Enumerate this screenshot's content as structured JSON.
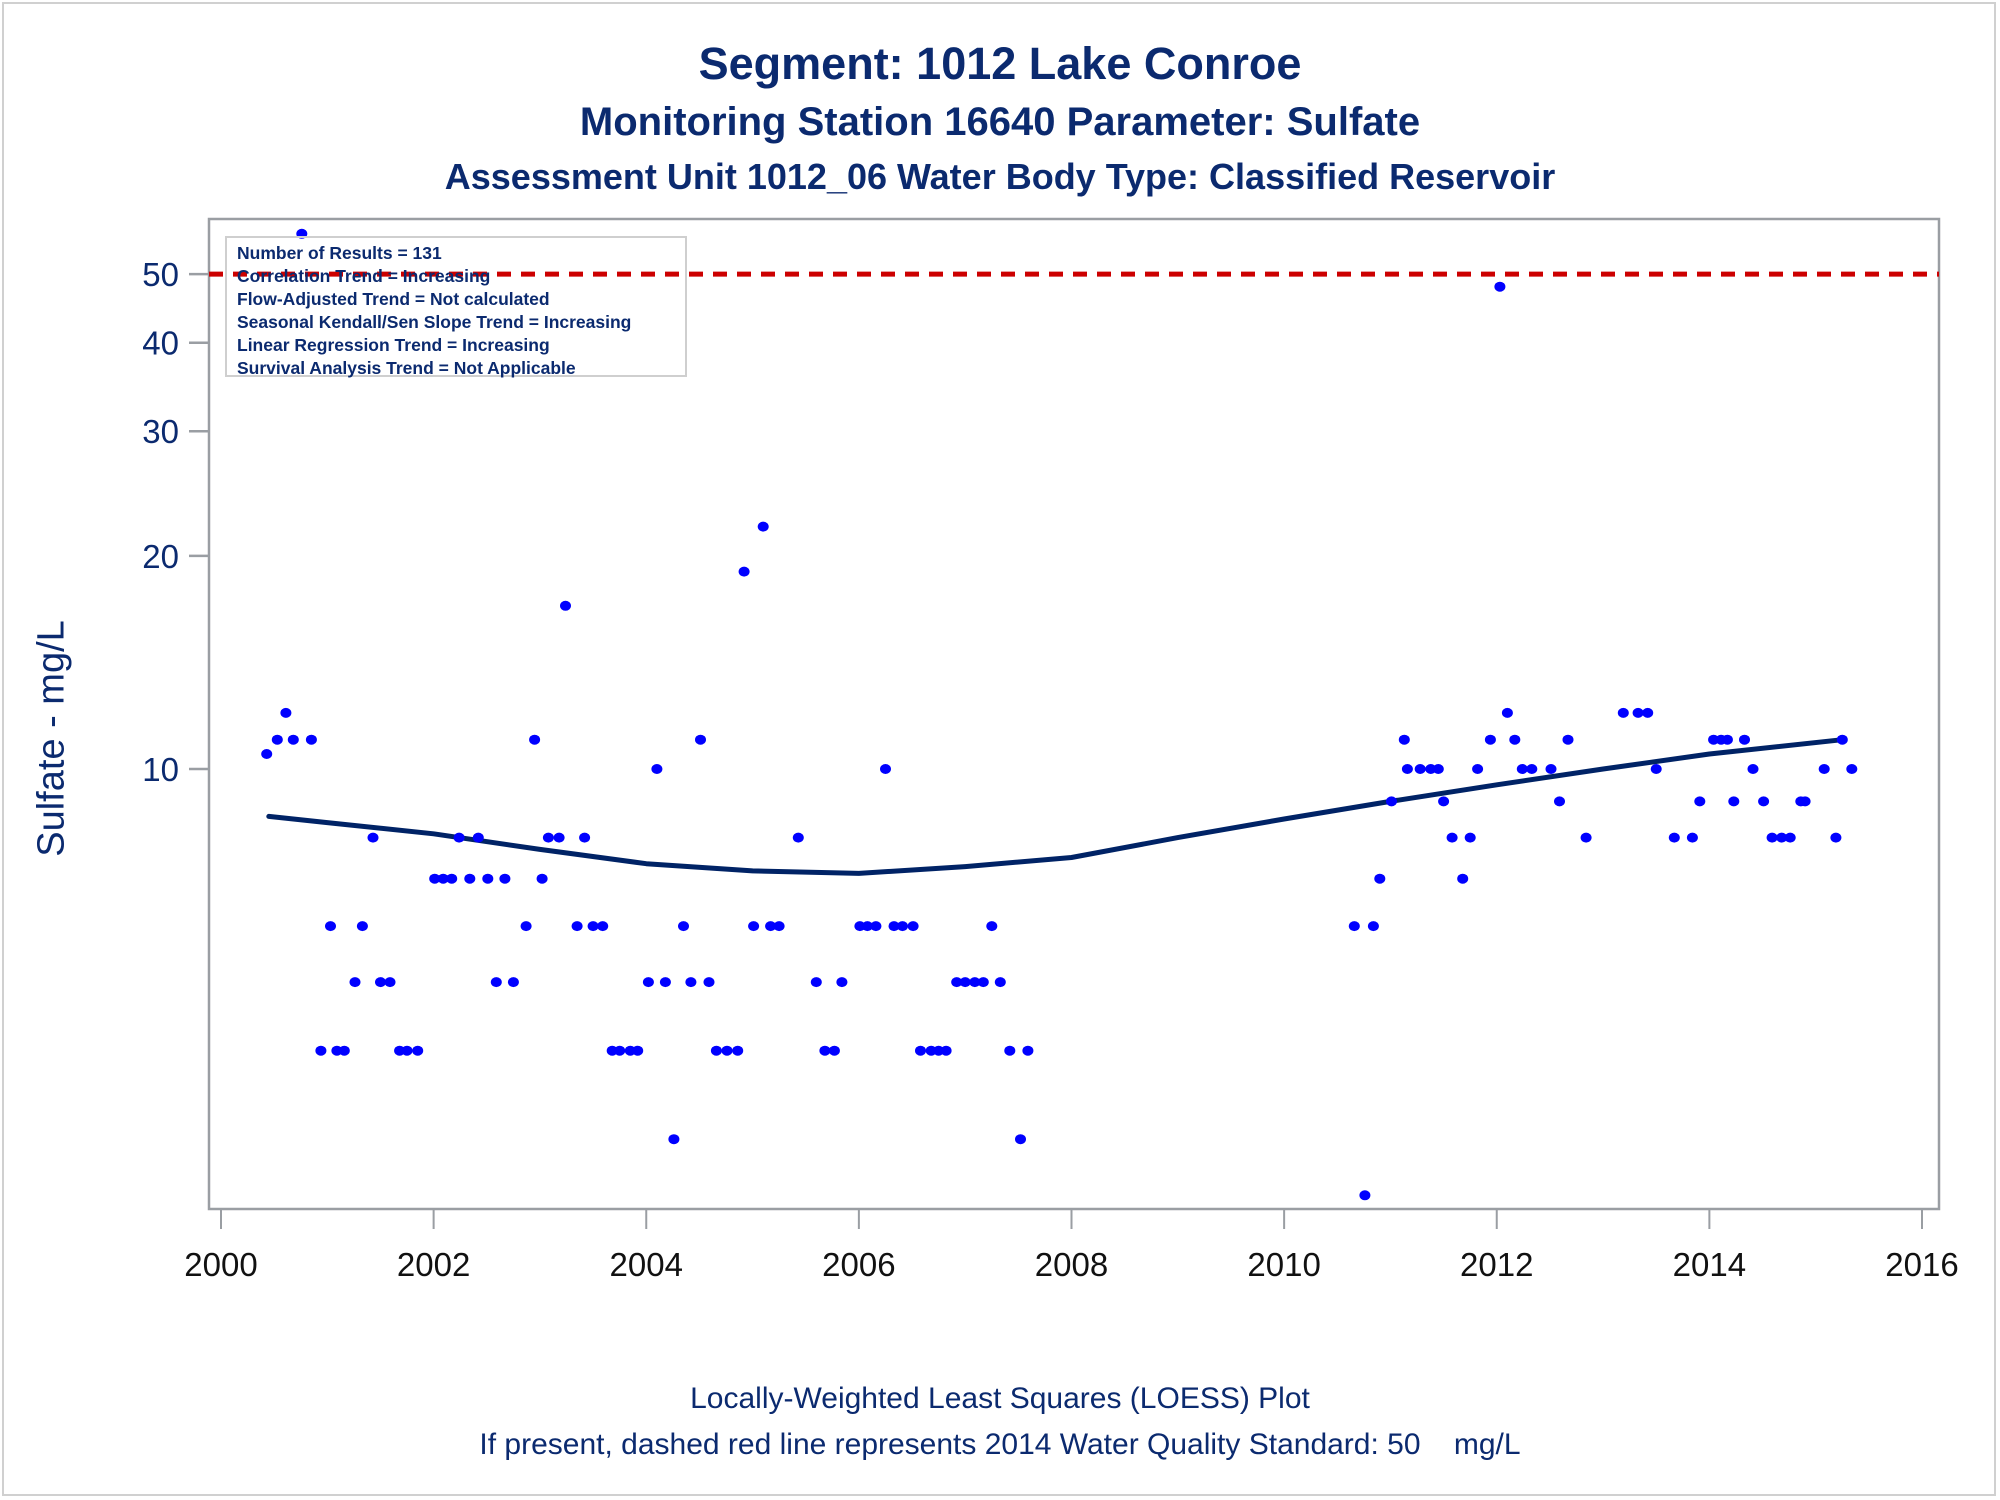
{
  "chart_data": {
    "type": "scatter",
    "title": "Segment: 1012  Lake Conroe",
    "subtitle": "Monitoring Station 16640 Parameter: Sulfate",
    "subtitle2": "Assessment Unit 1012_06   Water Body Type: Classified Reservoir",
    "xlabel": "",
    "ylabel": "Sulfate - mg/L",
    "xlim": [
      2000,
      2016
    ],
    "ylim": [
      2.5,
      60
    ],
    "yscale": "log",
    "xticks": [
      2000,
      2002,
      2004,
      2006,
      2008,
      2010,
      2012,
      2014,
      2016
    ],
    "xtick_labels": [
      "2000",
      "2002",
      "2004",
      "2006",
      "2008",
      "2010",
      "2012",
      "2014",
      "2016"
    ],
    "yticks": [
      10,
      20,
      30,
      40,
      50
    ],
    "ytick_labels": [
      "10",
      "20",
      "30",
      "40",
      "50"
    ],
    "grid": false,
    "colors": {
      "points": "#0000ff",
      "loess": "#002366",
      "standard": "#cc0000",
      "text": "#0b2a6f",
      "axis": "#9a9ea3"
    },
    "standard_line": {
      "value": 50,
      "style": "dashed",
      "label": "2014 Water Quality Standard"
    },
    "series": [
      {
        "name": "Sulfate results",
        "kind": "scatter",
        "points": [
          [
            2000.43,
            10.5
          ],
          [
            2000.53,
            11
          ],
          [
            2000.61,
            12
          ],
          [
            2000.68,
            11
          ],
          [
            2000.76,
            57
          ],
          [
            2000.85,
            11
          ],
          [
            2000.94,
            4
          ],
          [
            2001.03,
            6
          ],
          [
            2001.09,
            4
          ],
          [
            2001.16,
            4
          ],
          [
            2001.26,
            5
          ],
          [
            2001.33,
            6
          ],
          [
            2001.43,
            8
          ],
          [
            2001.5,
            5
          ],
          [
            2001.59,
            5
          ],
          [
            2001.68,
            4
          ],
          [
            2001.75,
            4
          ],
          [
            2001.85,
            4
          ],
          [
            2002.01,
            7
          ],
          [
            2002.09,
            7
          ],
          [
            2002.17,
            7
          ],
          [
            2002.24,
            8
          ],
          [
            2002.34,
            7
          ],
          [
            2002.42,
            8
          ],
          [
            2002.51,
            7
          ],
          [
            2002.59,
            5
          ],
          [
            2002.67,
            7
          ],
          [
            2002.75,
            5
          ],
          [
            2002.87,
            6
          ],
          [
            2002.95,
            11
          ],
          [
            2003.02,
            7
          ],
          [
            2003.08,
            8
          ],
          [
            2003.18,
            8
          ],
          [
            2003.24,
            17
          ],
          [
            2003.35,
            6
          ],
          [
            2003.42,
            8
          ],
          [
            2003.5,
            6
          ],
          [
            2003.59,
            6
          ],
          [
            2003.68,
            4
          ],
          [
            2003.75,
            4
          ],
          [
            2003.85,
            4
          ],
          [
            2003.92,
            4
          ],
          [
            2004.02,
            5
          ],
          [
            2004.1,
            10
          ],
          [
            2004.18,
            5
          ],
          [
            2004.26,
            3
          ],
          [
            2004.35,
            6
          ],
          [
            2004.42,
            5
          ],
          [
            2004.51,
            11
          ],
          [
            2004.59,
            5
          ],
          [
            2004.66,
            4
          ],
          [
            2004.76,
            4
          ],
          [
            2004.86,
            4
          ],
          [
            2004.92,
            19
          ],
          [
            2005.01,
            6
          ],
          [
            2005.1,
            22
          ],
          [
            2005.17,
            6
          ],
          [
            2005.25,
            6
          ],
          [
            2005.43,
            8
          ],
          [
            2005.6,
            5
          ],
          [
            2005.68,
            4
          ],
          [
            2005.77,
            4
          ],
          [
            2005.84,
            5
          ],
          [
            2006.01,
            6
          ],
          [
            2006.08,
            6
          ],
          [
            2006.16,
            6
          ],
          [
            2006.25,
            10
          ],
          [
            2006.33,
            6
          ],
          [
            2006.41,
            6
          ],
          [
            2006.51,
            6
          ],
          [
            2006.58,
            4
          ],
          [
            2006.68,
            4
          ],
          [
            2006.75,
            4
          ],
          [
            2006.82,
            4
          ],
          [
            2006.92,
            5
          ],
          [
            2007.0,
            5
          ],
          [
            2007.09,
            5
          ],
          [
            2007.17,
            5
          ],
          [
            2007.25,
            6
          ],
          [
            2007.33,
            5
          ],
          [
            2007.42,
            4
          ],
          [
            2007.52,
            3
          ],
          [
            2007.59,
            4
          ],
          [
            2010.66,
            6
          ],
          [
            2010.76,
            2.5
          ],
          [
            2010.84,
            6
          ],
          [
            2010.9,
            7
          ],
          [
            2011.01,
            9
          ],
          [
            2011.13,
            11
          ],
          [
            2011.16,
            10
          ],
          [
            2011.28,
            10
          ],
          [
            2011.38,
            10
          ],
          [
            2011.45,
            10
          ],
          [
            2011.5,
            9
          ],
          [
            2011.58,
            8
          ],
          [
            2011.68,
            7
          ],
          [
            2011.75,
            8
          ],
          [
            2011.82,
            10
          ],
          [
            2011.94,
            11
          ],
          [
            2012.03,
            48
          ],
          [
            2012.1,
            12
          ],
          [
            2012.17,
            11
          ],
          [
            2012.24,
            10
          ],
          [
            2012.33,
            10
          ],
          [
            2012.51,
            10
          ],
          [
            2012.59,
            9
          ],
          [
            2012.67,
            11
          ],
          [
            2012.84,
            8
          ],
          [
            2013.19,
            12
          ],
          [
            2013.33,
            12
          ],
          [
            2013.42,
            12
          ],
          [
            2013.5,
            10
          ],
          [
            2013.67,
            8
          ],
          [
            2013.84,
            8
          ],
          [
            2013.91,
            9
          ],
          [
            2014.04,
            11
          ],
          [
            2014.11,
            11
          ],
          [
            2014.17,
            11
          ],
          [
            2014.23,
            9
          ],
          [
            2014.33,
            11
          ],
          [
            2014.41,
            10
          ],
          [
            2014.51,
            9
          ],
          [
            2014.59,
            8
          ],
          [
            2014.68,
            8
          ],
          [
            2014.76,
            8
          ],
          [
            2014.86,
            9
          ],
          [
            2014.9,
            9
          ],
          [
            2015.08,
            10
          ],
          [
            2015.19,
            8
          ],
          [
            2015.25,
            11
          ],
          [
            2015.34,
            10
          ]
        ]
      },
      {
        "name": "LOESS fit",
        "kind": "line",
        "points": [
          [
            2000.45,
            8.57
          ],
          [
            2001,
            8.4
          ],
          [
            2002,
            8.1
          ],
          [
            2003,
            7.7
          ],
          [
            2004,
            7.35
          ],
          [
            2005,
            7.18
          ],
          [
            2006,
            7.12
          ],
          [
            2007,
            7.28
          ],
          [
            2008,
            7.5
          ],
          [
            2009,
            8.0
          ],
          [
            2010,
            8.5
          ],
          [
            2011,
            9.0
          ],
          [
            2012,
            9.5
          ],
          [
            2013,
            10.0
          ],
          [
            2014,
            10.5
          ],
          [
            2015.25,
            11.0
          ]
        ]
      }
    ],
    "legend": {
      "placement": "top-left",
      "lines": [
        "Number of Results = 131",
        "Correlation Trend = Increasing",
        "Flow-Adjusted Trend = Not calculated",
        "Seasonal Kendall/Sen Slope Trend = Increasing",
        "Linear Regression Trend = Increasing",
        "Survival Analysis Trend = Not Applicable"
      ]
    },
    "footnotes": [
      "Locally-Weighted Least Squares (LOESS) Plot",
      "If present, dashed red line represents 2014 Water Quality Standard: 50    mg/L"
    ]
  }
}
